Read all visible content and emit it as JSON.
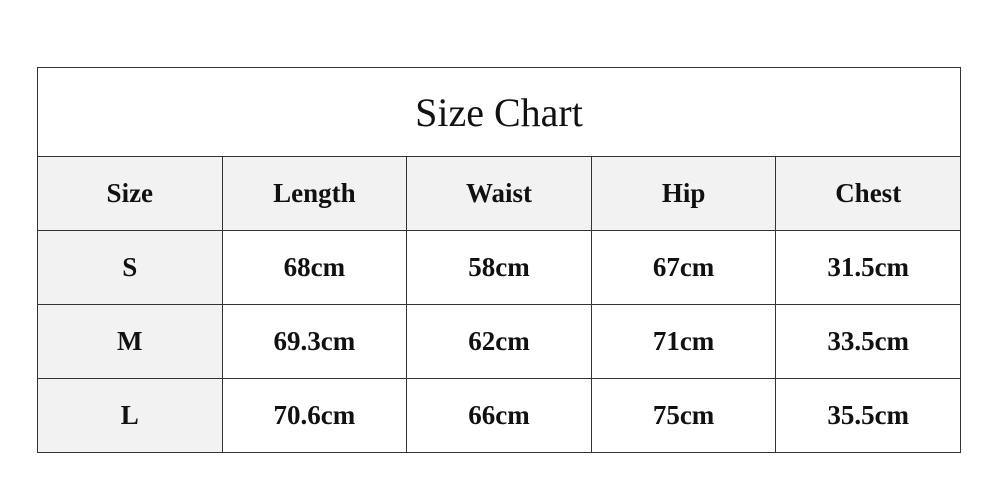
{
  "title": "Size Chart",
  "headers": [
    "Size",
    "Length",
    "Waist",
    "Hip",
    "Chest"
  ],
  "rows": [
    [
      "S",
      "68cm",
      "58cm",
      "67cm",
      "31.5cm"
    ],
    [
      "M",
      "69.3cm",
      "62cm",
      "71cm",
      "33.5cm"
    ],
    [
      "L",
      "70.6cm",
      "66cm",
      "75cm",
      "35.5cm"
    ]
  ],
  "colors": {
    "header_bg": "#f2f2f2",
    "border": "#333333"
  }
}
